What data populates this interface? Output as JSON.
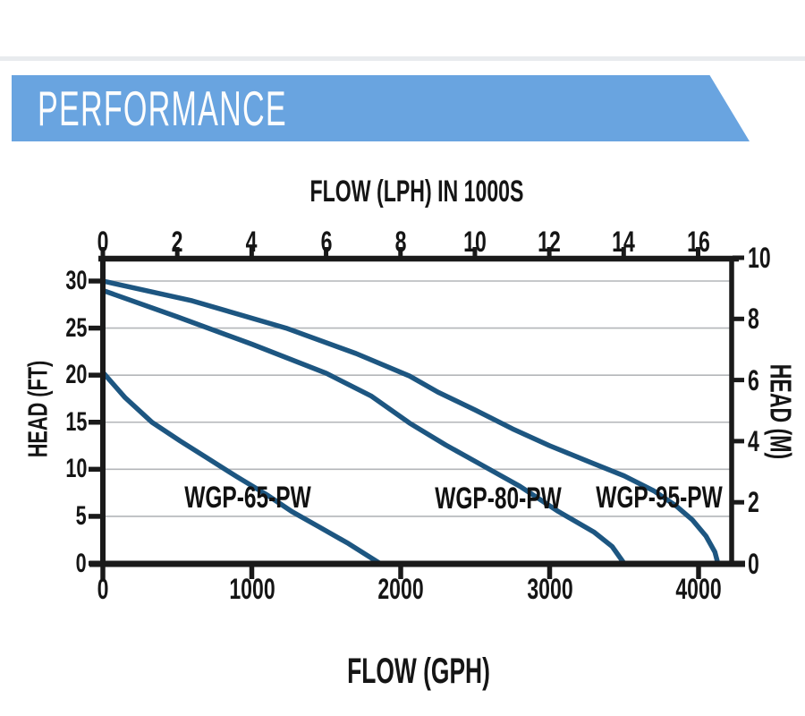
{
  "banner": {
    "title": "PERFORMANCE"
  },
  "colors": {
    "banner_blue": "#69a4e0",
    "banner_text": "#fdfdfd",
    "curve_blue": "#1d5681",
    "grid_gray": "#b3b6b9",
    "axis_black": "#1a1a1a",
    "text_black": "#151515",
    "top_rule_gray": "#e8ebee"
  },
  "chart_data": {
    "type": "line",
    "title": "",
    "grid": "horizontal only, every 5 ft",
    "legend_position": "inline curve labels",
    "axes": {
      "top": {
        "label": "FLOW (LPH) IN 1000S",
        "ticks": [
          0,
          2,
          4,
          6,
          8,
          10,
          12,
          14,
          16
        ],
        "range": [
          0,
          16.9
        ]
      },
      "bottom": {
        "label": "FLOW (GPH)",
        "ticks": [
          0,
          1000,
          2000,
          3000,
          4000
        ],
        "range": [
          0,
          4225
        ]
      },
      "left": {
        "label": "HEAD (FT)",
        "ticks": [
          30,
          25,
          20,
          15,
          10,
          5,
          0
        ],
        "range": [
          0,
          32.8
        ]
      },
      "right": {
        "label": "HEAD (M)",
        "ticks": [
          10,
          8,
          6,
          4,
          2,
          0
        ],
        "range": [
          0,
          10
        ]
      }
    },
    "series": [
      {
        "name": "WGP-65-PW",
        "points_gph_ft": [
          [
            0,
            20.3
          ],
          [
            150,
            17.6
          ],
          [
            330,
            15.0
          ],
          [
            520,
            13.0
          ],
          [
            700,
            11.2
          ],
          [
            900,
            9.2
          ],
          [
            1100,
            7.3
          ],
          [
            1270,
            5.5
          ],
          [
            1450,
            3.9
          ],
          [
            1650,
            2.1
          ],
          [
            1860,
            0
          ]
        ]
      },
      {
        "name": "WGP-80-PW",
        "points_gph_ft": [
          [
            0,
            29.0
          ],
          [
            500,
            26.2
          ],
          [
            1000,
            23.3
          ],
          [
            1500,
            20.2
          ],
          [
            1800,
            17.8
          ],
          [
            2060,
            14.9
          ],
          [
            2300,
            12.6
          ],
          [
            2550,
            10.4
          ],
          [
            2800,
            8.2
          ],
          [
            3050,
            5.6
          ],
          [
            3300,
            3.3
          ],
          [
            3420,
            1.8
          ],
          [
            3500,
            0
          ]
        ]
      },
      {
        "name": "WGP-95-PW",
        "points_gph_ft": [
          [
            0,
            30.0
          ],
          [
            600,
            27.9
          ],
          [
            1230,
            25.0
          ],
          [
            1700,
            22.3
          ],
          [
            2060,
            19.9
          ],
          [
            2250,
            18.2
          ],
          [
            2500,
            16.3
          ],
          [
            2750,
            14.3
          ],
          [
            3000,
            12.5
          ],
          [
            3250,
            10.9
          ],
          [
            3500,
            9.3
          ],
          [
            3700,
            7.7
          ],
          [
            3850,
            6.1
          ],
          [
            3960,
            4.6
          ],
          [
            4050,
            2.9
          ],
          [
            4110,
            1.2
          ],
          [
            4130,
            0
          ]
        ]
      }
    ]
  }
}
